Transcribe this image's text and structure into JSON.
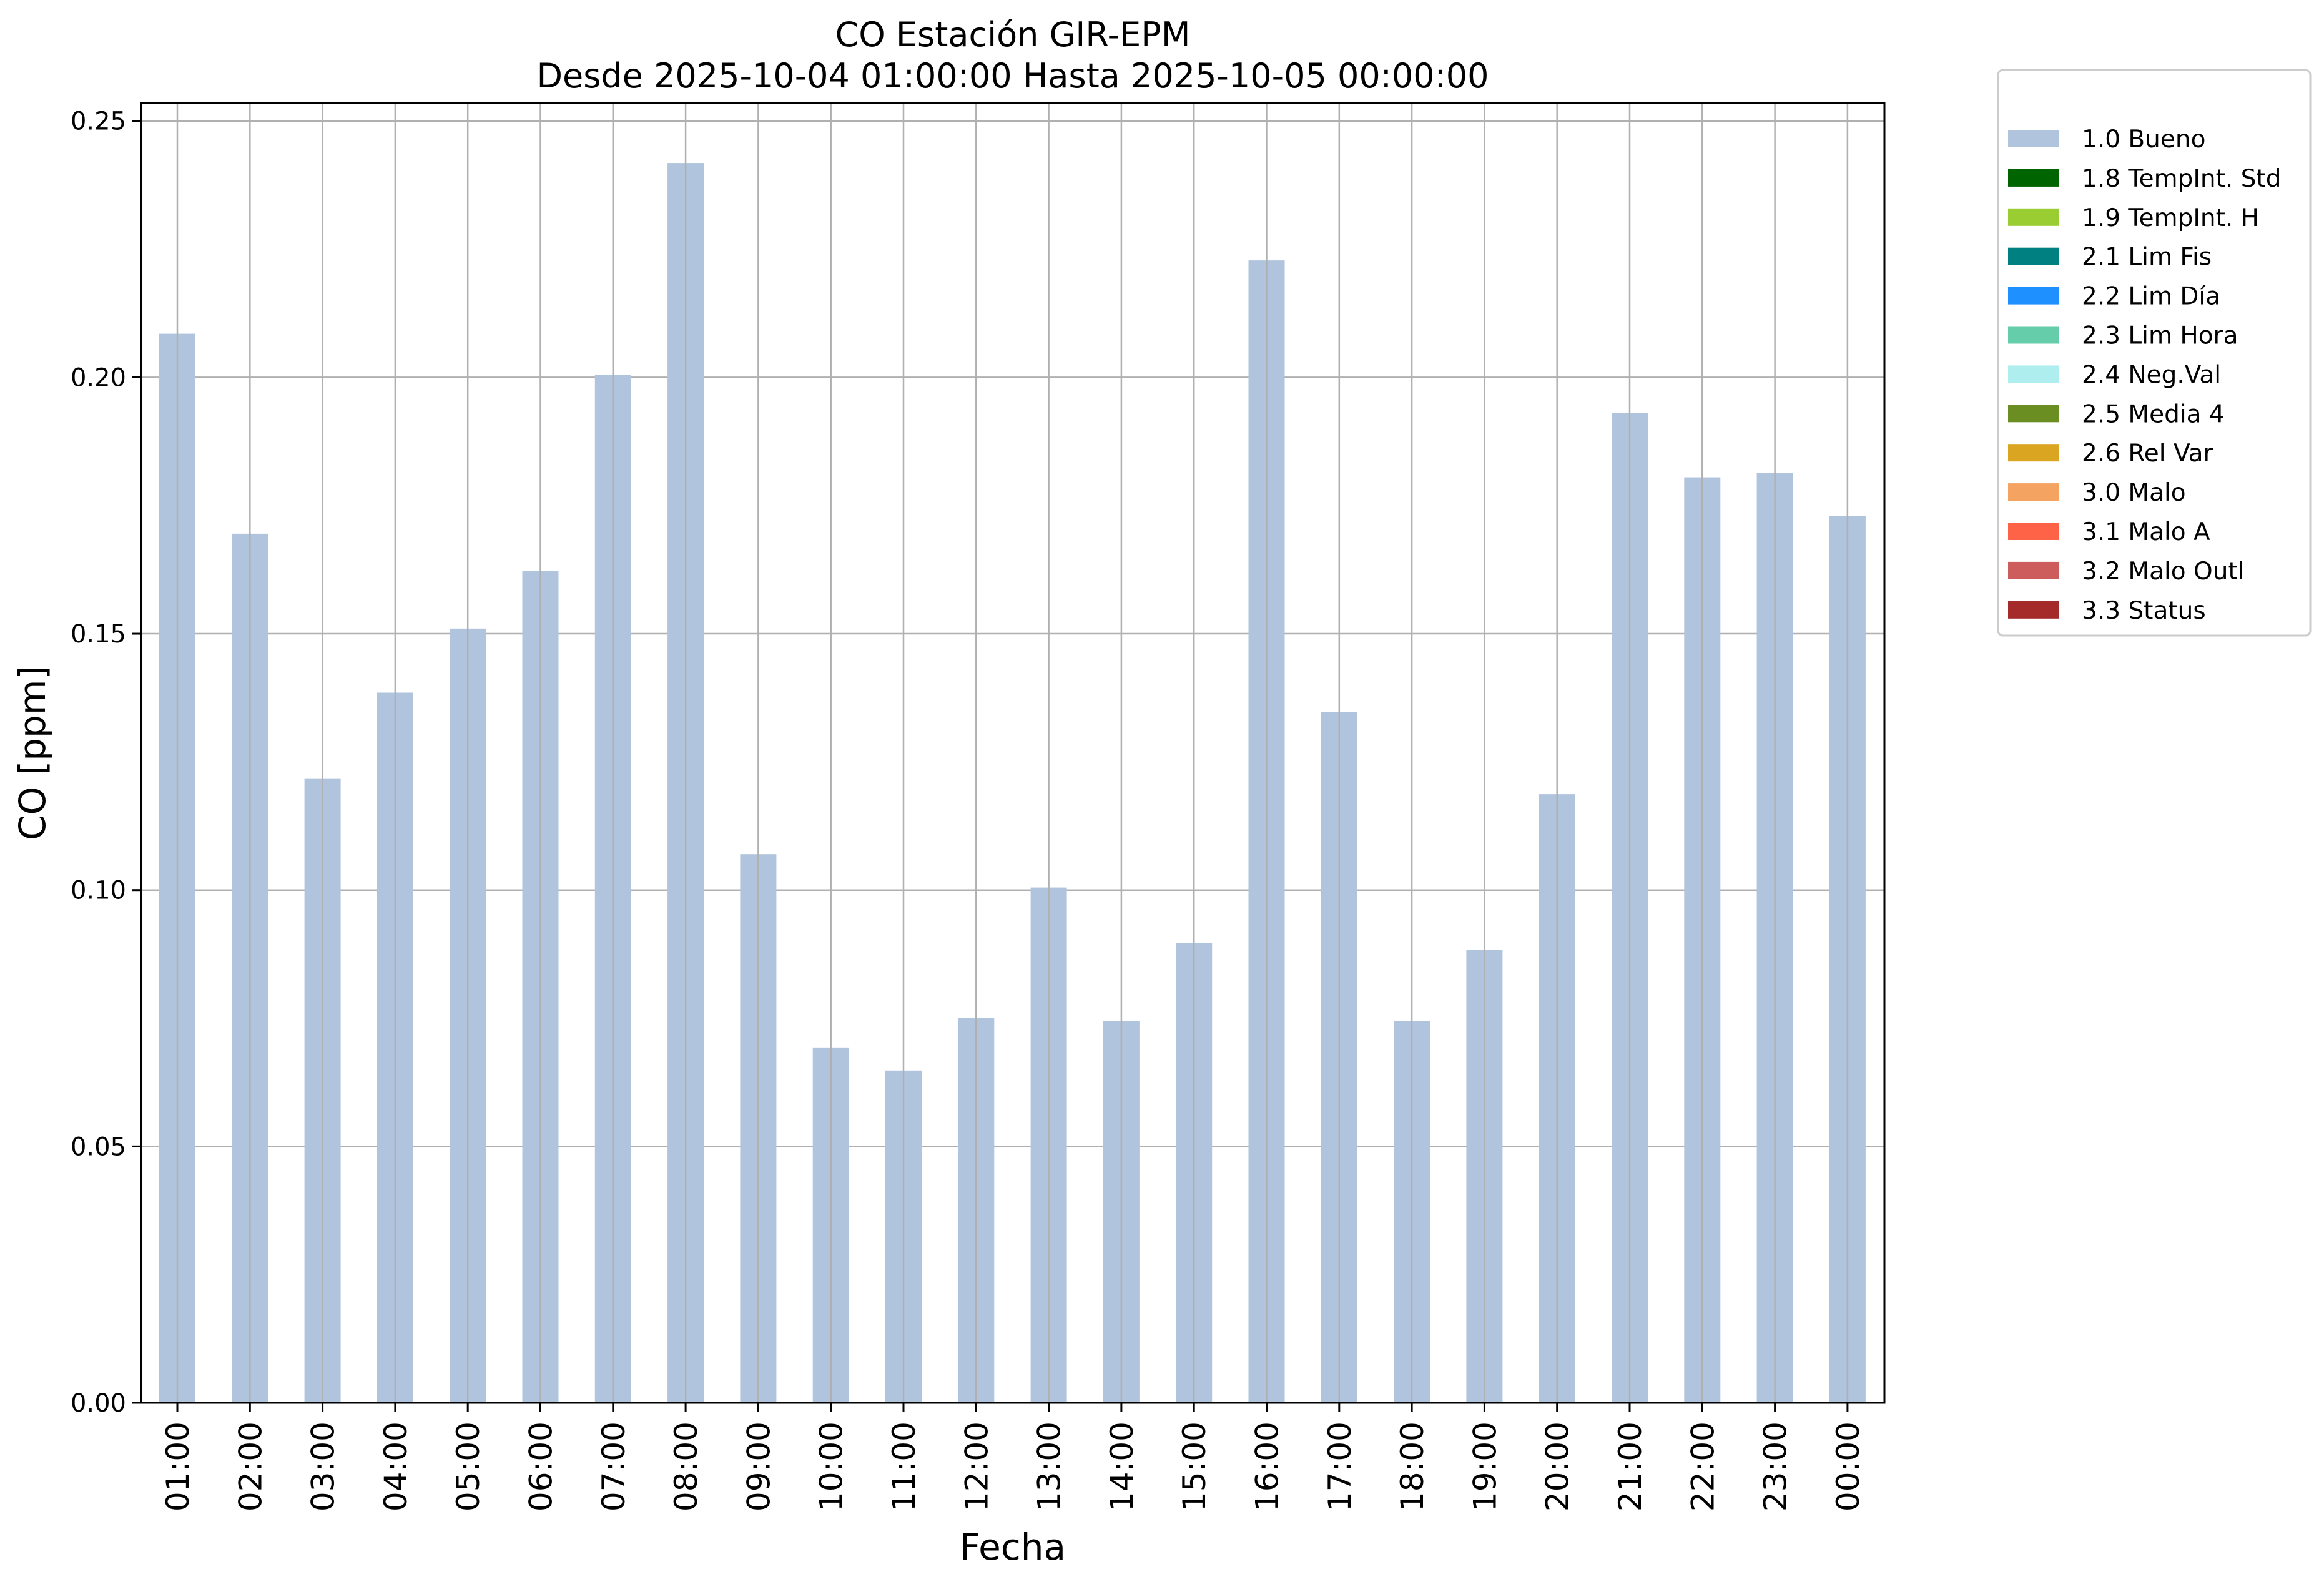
{
  "chart_data": {
    "type": "bar",
    "title": "CO Estación GIR-EPM",
    "subtitle": "Desde 2025-10-04 01:00:00 Hasta 2025-10-05 00:00:00",
    "xlabel": "Fecha",
    "ylabel": "CO [ppm]",
    "ylim": [
      0,
      0.255
    ],
    "yticks": [
      "0.00",
      "0.05",
      "0.10",
      "0.15",
      "0.20",
      "0.25"
    ],
    "grid": true,
    "legend_position": "outside-top-right",
    "categories": [
      "01:00",
      "02:00",
      "03:00",
      "04:00",
      "05:00",
      "06:00",
      "07:00",
      "08:00",
      "09:00",
      "10:00",
      "11:00",
      "12:00",
      "13:00",
      "14:00",
      "15:00",
      "16:00",
      "17:00",
      "18:00",
      "19:00",
      "20:00",
      "21:00",
      "22:00",
      "23:00",
      "00:00"
    ],
    "series": [
      {
        "name": "1.0 Bueno",
        "color": "#b0c4de",
        "values": [
          0.2085,
          0.1695,
          0.1218,
          0.1385,
          0.151,
          0.1623,
          0.2005,
          0.2418,
          0.107,
          0.0693,
          0.0648,
          0.075,
          0.1005,
          0.0745,
          0.0897,
          0.2228,
          0.1347,
          0.0745,
          0.0883,
          0.1187,
          0.193,
          0.1805,
          0.1813,
          0.173
        ]
      }
    ],
    "legend": [
      {
        "label": "1.0 Bueno",
        "color": "#b0c4de"
      },
      {
        "label": "1.8 TempInt. Std",
        "color": "#006400"
      },
      {
        "label": "1.9 TempInt. H",
        "color": "#9acd32"
      },
      {
        "label": "2.1 Lim Fis",
        "color": "#008080"
      },
      {
        "label": "2.2 Lim Día",
        "color": "#1e90ff"
      },
      {
        "label": "2.3 Lim Hora",
        "color": "#66cdaa"
      },
      {
        "label": "2.4 Neg.Val",
        "color": "#afeeee"
      },
      {
        "label": "2.5 Media 4",
        "color": "#6b8e23"
      },
      {
        "label": "2.6 Rel Var",
        "color": "#daa520"
      },
      {
        "label": "3.0 Malo",
        "color": "#f4a460"
      },
      {
        "label": "3.1 Malo A",
        "color": "#ff6347"
      },
      {
        "label": "3.2 Malo Outl",
        "color": "#cd5c5c"
      },
      {
        "label": "3.3 Status",
        "color": "#a52a2a"
      }
    ]
  }
}
